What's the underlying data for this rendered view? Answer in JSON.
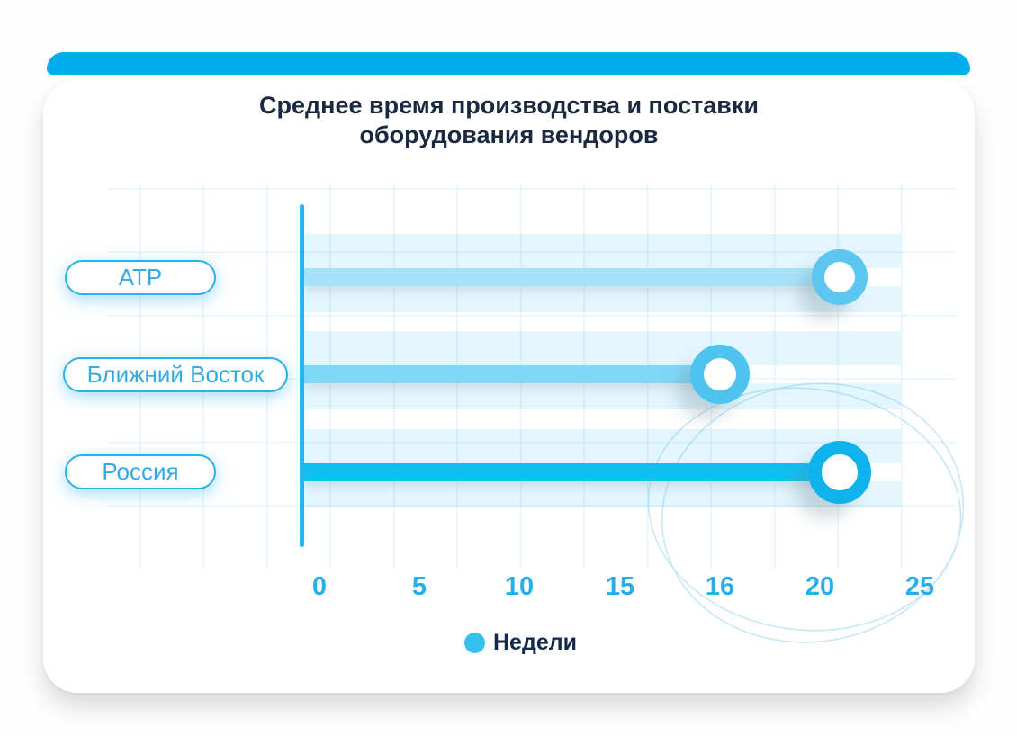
{
  "title": {
    "line1": "Среднее время производства и поставки",
    "line2": "оборудования вендоров"
  },
  "legend": {
    "label": "Недели"
  },
  "colors": {
    "topbar": "#00ACEC",
    "title_text": "#1A2940",
    "axis_line": "#29B5EC",
    "tick_text": "#29AEE7",
    "legend_dot": "#35C1F0",
    "legend_text": "#15294B",
    "pill_border": "#29B2E8",
    "pill_text": "#36A9DF",
    "band": "rgba(80,190,240,0.16)",
    "grid_line": "#D9EFF9",
    "decor_line": "#C6E6F3",
    "row_stems": [
      "#A8E2F8",
      "#7FD7F6",
      "#0FBFF1"
    ],
    "row_rings": [
      "#5CC6F0",
      "#4FC3EF",
      "#0EB2ED"
    ]
  },
  "chart_data": {
    "type": "bar",
    "orientation": "horizontal",
    "title": "Среднее время производства и поставки оборудования вендоров",
    "categories": [
      "АТР",
      "Ближний Восток",
      "Россия"
    ],
    "series": [
      {
        "name": "Недели",
        "values": [
          21,
          16,
          21
        ]
      }
    ],
    "x_tick_labels": [
      "0",
      "5",
      "10",
      "15",
      "16",
      "20",
      "25"
    ],
    "x_tick_values": [
      0,
      5,
      10,
      15,
      16,
      20,
      25
    ],
    "xlim": [
      0,
      25
    ],
    "xlabel": "Недели",
    "grid": true,
    "legend_position": "bottom",
    "marker_style": "donut"
  }
}
